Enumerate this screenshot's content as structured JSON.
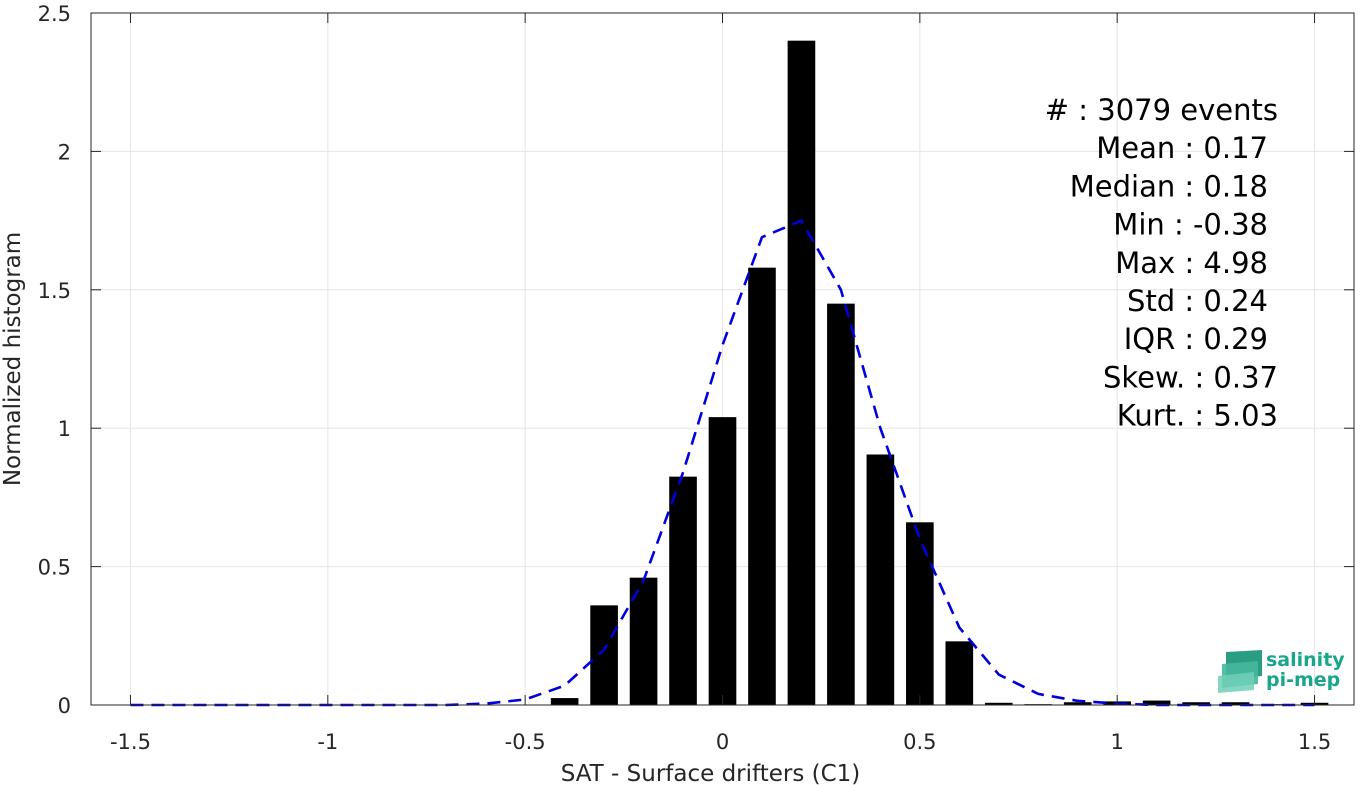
{
  "chart_data": {
    "type": "bar",
    "xlabel": "SAT - Surface drifters (C1)",
    "ylabel": "Normalized histogram",
    "xlim": [
      -1.6,
      1.6
    ],
    "ylim": [
      0,
      2.5
    ],
    "x_ticks": [
      -1.5,
      -1,
      -0.5,
      0,
      0.5,
      1,
      1.5
    ],
    "x_tick_labels": [
      "-1.5",
      "-1",
      "-0.5",
      "0",
      "0.5",
      "1",
      "1.5"
    ],
    "y_ticks": [
      0,
      0.5,
      1,
      1.5,
      2,
      2.5
    ],
    "y_tick_labels": [
      "0",
      "0.5",
      "1",
      "1.5",
      "2",
      "2.5"
    ],
    "grid": true,
    "bar_width": 0.07,
    "bar_color": "#000000",
    "bars": {
      "x": [
        -0.4,
        -0.3,
        -0.2,
        -0.1,
        0.0,
        0.1,
        0.2,
        0.3,
        0.4,
        0.5,
        0.6,
        0.7,
        0.8,
        0.9,
        1.0,
        1.1,
        1.2,
        1.3,
        1.4,
        1.5
      ],
      "values": [
        0.025,
        0.36,
        0.46,
        0.825,
        1.04,
        1.58,
        2.4,
        1.45,
        0.905,
        0.66,
        0.23,
        0.008,
        0.003,
        0.01,
        0.013,
        0.016,
        0.01,
        0.01,
        0.003,
        0.008
      ]
    },
    "fit_curve": {
      "style": "dashed",
      "color": "#0000dd",
      "x": [
        -1.5,
        -1.4,
        -1.3,
        -1.2,
        -1.1,
        -1.0,
        -0.9,
        -0.8,
        -0.7,
        -0.6,
        -0.5,
        -0.4,
        -0.3,
        -0.2,
        -0.1,
        0.0,
        0.1,
        0.2,
        0.3,
        0.4,
        0.5,
        0.6,
        0.7,
        0.8,
        0.9,
        1.0,
        1.1,
        1.2,
        1.3,
        1.4,
        1.5
      ],
      "y": [
        0,
        0,
        0,
        0,
        0,
        0,
        0,
        0,
        0,
        0.005,
        0.02,
        0.07,
        0.2,
        0.45,
        0.84,
        1.3,
        1.69,
        1.75,
        1.5,
        1.0,
        0.6,
        0.28,
        0.11,
        0.04,
        0.015,
        0.005,
        0,
        0,
        0,
        0,
        0
      ]
    },
    "annotations": [
      "#  : 3079 events",
      "Mean : 0.17",
      "Median : 0.18",
      "Min : -0.38",
      "Max : 4.98",
      "Std : 0.24",
      "IQR : 0.29",
      "Skew. : 0.37",
      "Kurt. : 5.03"
    ],
    "logo": {
      "line1": "salinity",
      "line2": "pi-mep",
      "color": "#1aa68c"
    }
  }
}
